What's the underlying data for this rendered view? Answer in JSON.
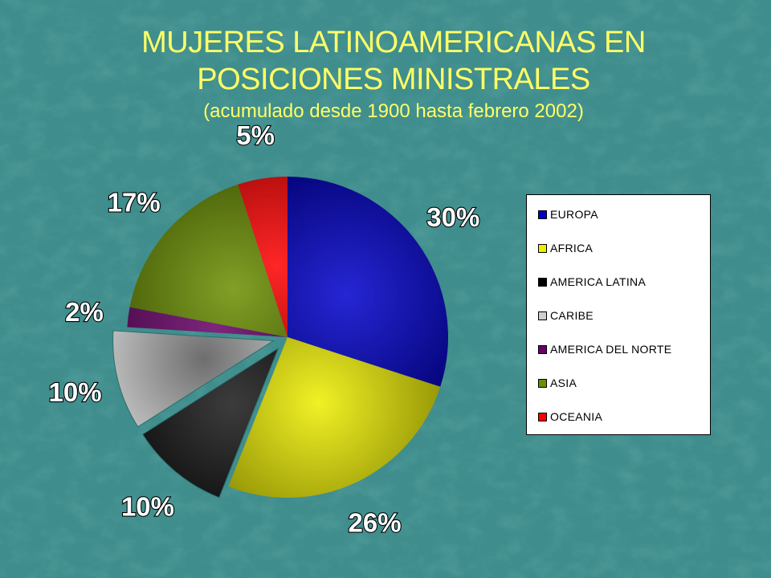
{
  "title": {
    "line1": "MUJERES LATINOAMERICANAS EN",
    "line2": "POSICIONES MINISTRALES",
    "subtitle": "(acumulado desde 1900 hasta febrero 2002)"
  },
  "colors": {
    "background": "#3f8d8c",
    "title": "#ffff66"
  },
  "chart_data": {
    "type": "pie",
    "title": "MUJERES LATINOAMERICANAS EN POSICIONES MINISTRALES",
    "subtitle": "(acumulado desde 1900 hasta febrero 2002)",
    "categories": [
      "EUROPA",
      "AFRICA",
      "AMERICA LATINA",
      "CARIBE",
      "AMERICA DEL NORTE",
      "ASIA",
      "OCEANIA"
    ],
    "values": [
      30,
      26,
      10,
      10,
      2,
      17,
      5
    ],
    "labels": [
      "30%",
      "26%",
      "10%",
      "10%",
      "2%",
      "17%",
      "5%"
    ],
    "colors": [
      "#0000cc",
      "#eeee00",
      "#000000",
      "#d0d0d0",
      "#660066",
      "#6b8f00",
      "#ff0000"
    ],
    "exploded": [
      "AMERICA LATINA",
      "CARIBE"
    ],
    "legend_position": "right"
  }
}
